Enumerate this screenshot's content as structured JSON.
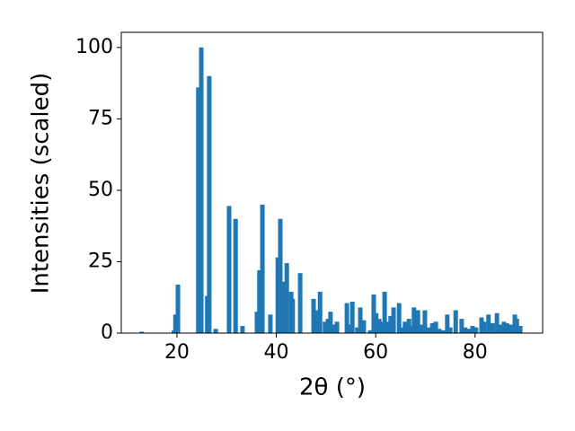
{
  "chart_data": {
    "type": "bar",
    "xlabel": "2θ (°)",
    "ylabel": "Intensities (scaled)",
    "x": [
      12.9,
      19.4,
      19.7,
      20.2,
      24.3,
      24.9,
      26.1,
      26.5,
      27.8,
      30.5,
      31.8,
      33.2,
      36.1,
      36.6,
      37.2,
      38.8,
      40.3,
      40.8,
      41.5,
      42.1,
      43.0,
      43.3,
      44.8,
      47.5,
      48.0,
      48.8,
      49.8,
      50.4,
      50.9,
      51.5,
      52.2,
      54.2,
      54.7,
      55.3,
      56.3,
      56.9,
      57.6,
      58.9,
      59.6,
      60.1,
      60.7,
      61.4,
      61.8,
      62.5,
      63.0,
      63.6,
      64.7,
      65.4,
      65.9,
      66.7,
      67.2,
      67.7,
      68.5,
      69.0,
      69.9,
      70.6,
      71.4,
      72.1,
      72.8,
      73.7,
      74.4,
      75.0,
      76.1,
      77.3,
      78.0,
      78.8,
      79.5,
      80.2,
      81.3,
      81.8,
      82.7,
      83.5,
      84.4,
      85.1,
      85.8,
      86.4,
      87.1,
      88.0,
      88.4,
      89.1
    ],
    "values": [
      0.5,
      1,
      6.5,
      17,
      86,
      100,
      13,
      90,
      1.5,
      44.5,
      40,
      2.5,
      7.5,
      22,
      45,
      6.5,
      26.5,
      40,
      18,
      24.5,
      14.5,
      12,
      21,
      12,
      8,
      14.5,
      4,
      5,
      7.5,
      3,
      4,
      10.5,
      3,
      11,
      2,
      9,
      4.5,
      1,
      13.5,
      7,
      5,
      4,
      14.5,
      4,
      6,
      9,
      10.5,
      2,
      4,
      5,
      2.5,
      9,
      8,
      3,
      8,
      2,
      3.5,
      4,
      1.5,
      1,
      6.5,
      2,
      8,
      5,
      2,
      1.5,
      2.5,
      2,
      5.5,
      4,
      6.5,
      3.5,
      7,
      3,
      4,
      3.5,
      3,
      6.5,
      5,
      2.5
    ],
    "color": "#1f77b4",
    "xlim": [
      8.8,
      93.6
    ],
    "ylim": [
      0,
      105.3
    ],
    "xticks": [
      20,
      40,
      60,
      80
    ],
    "yticks": [
      0,
      25,
      50,
      75,
      100
    ]
  }
}
